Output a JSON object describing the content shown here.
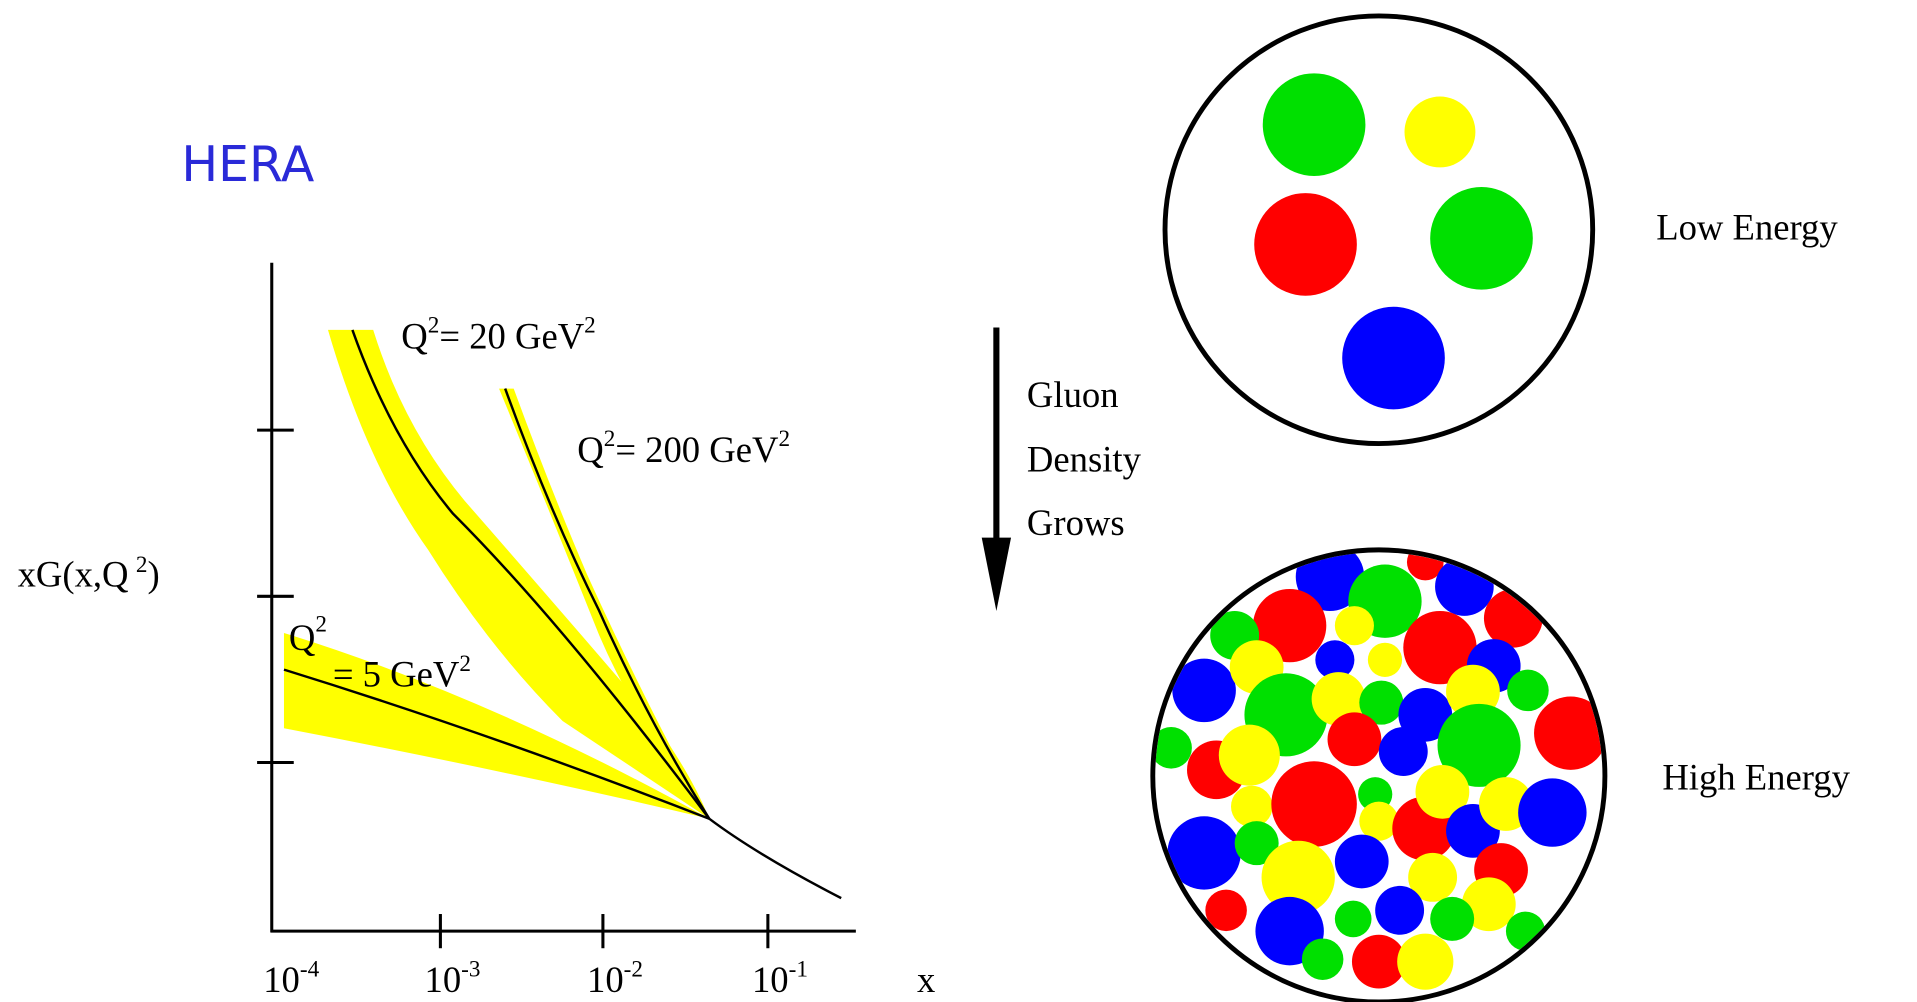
{
  "title": "HERA",
  "plot": {
    "y_label": {
      "text": "xG(x,Q",
      "exponent": "2",
      "close": ")"
    },
    "x_label": "x",
    "x_ticks": [
      {
        "base": "10",
        "exponent": "-4"
      },
      {
        "base": "10",
        "exponent": "-3"
      },
      {
        "base": "10",
        "exponent": "-2"
      },
      {
        "base": "10",
        "exponent": "-1"
      }
    ],
    "curves": [
      {
        "q": "Q",
        "q_exp": "2",
        "text": "= 20 GeV",
        "unit_exp": "2"
      },
      {
        "q": "Q",
        "q_exp": "2",
        "text": "= 200 GeV",
        "unit_exp": "2"
      },
      {
        "q": "Q",
        "q_exp": "2",
        "text": "= 5 GeV",
        "unit_exp": "2"
      }
    ]
  },
  "arrow_text": [
    "Gluon",
    "Density",
    "Grows"
  ],
  "low_energy": "Low Energy",
  "high_energy": "High Energy"
}
